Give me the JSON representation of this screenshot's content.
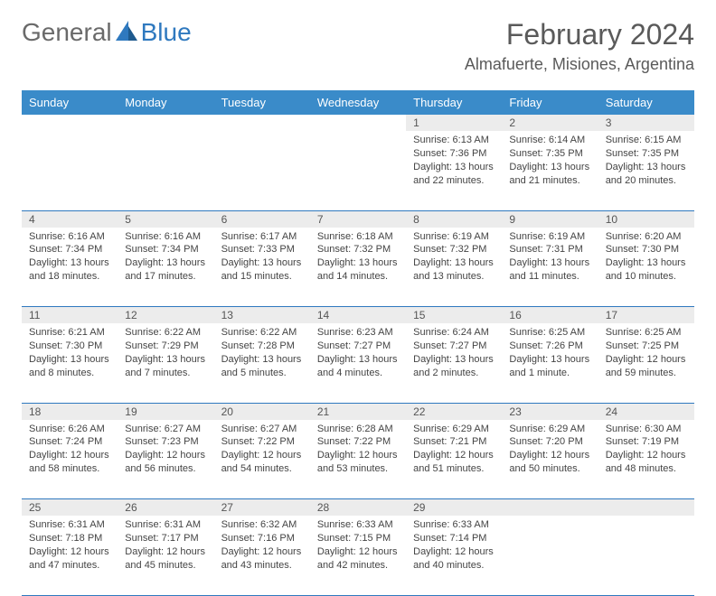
{
  "logo": {
    "general": "General",
    "blue": "Blue"
  },
  "title": "February 2024",
  "location": "Almafuerte, Misiones, Argentina",
  "colors": {
    "header_bg": "#3a8bc9",
    "header_text": "#ffffff",
    "daynum_bg": "#ececec",
    "border": "#2f79bf",
    "logo_gray": "#6a6a6a",
    "logo_blue": "#2f79bf",
    "title_color": "#5a5a5a"
  },
  "weekdays": [
    "Sunday",
    "Monday",
    "Tuesday",
    "Wednesday",
    "Thursday",
    "Friday",
    "Saturday"
  ],
  "weeks": [
    [
      null,
      null,
      null,
      null,
      {
        "n": "1",
        "sr": "Sunrise: 6:13 AM",
        "ss": "Sunset: 7:36 PM",
        "dl": "Daylight: 13 hours and 22 minutes."
      },
      {
        "n": "2",
        "sr": "Sunrise: 6:14 AM",
        "ss": "Sunset: 7:35 PM",
        "dl": "Daylight: 13 hours and 21 minutes."
      },
      {
        "n": "3",
        "sr": "Sunrise: 6:15 AM",
        "ss": "Sunset: 7:35 PM",
        "dl": "Daylight: 13 hours and 20 minutes."
      }
    ],
    [
      {
        "n": "4",
        "sr": "Sunrise: 6:16 AM",
        "ss": "Sunset: 7:34 PM",
        "dl": "Daylight: 13 hours and 18 minutes."
      },
      {
        "n": "5",
        "sr": "Sunrise: 6:16 AM",
        "ss": "Sunset: 7:34 PM",
        "dl": "Daylight: 13 hours and 17 minutes."
      },
      {
        "n": "6",
        "sr": "Sunrise: 6:17 AM",
        "ss": "Sunset: 7:33 PM",
        "dl": "Daylight: 13 hours and 15 minutes."
      },
      {
        "n": "7",
        "sr": "Sunrise: 6:18 AM",
        "ss": "Sunset: 7:32 PM",
        "dl": "Daylight: 13 hours and 14 minutes."
      },
      {
        "n": "8",
        "sr": "Sunrise: 6:19 AM",
        "ss": "Sunset: 7:32 PM",
        "dl": "Daylight: 13 hours and 13 minutes."
      },
      {
        "n": "9",
        "sr": "Sunrise: 6:19 AM",
        "ss": "Sunset: 7:31 PM",
        "dl": "Daylight: 13 hours and 11 minutes."
      },
      {
        "n": "10",
        "sr": "Sunrise: 6:20 AM",
        "ss": "Sunset: 7:30 PM",
        "dl": "Daylight: 13 hours and 10 minutes."
      }
    ],
    [
      {
        "n": "11",
        "sr": "Sunrise: 6:21 AM",
        "ss": "Sunset: 7:30 PM",
        "dl": "Daylight: 13 hours and 8 minutes."
      },
      {
        "n": "12",
        "sr": "Sunrise: 6:22 AM",
        "ss": "Sunset: 7:29 PM",
        "dl": "Daylight: 13 hours and 7 minutes."
      },
      {
        "n": "13",
        "sr": "Sunrise: 6:22 AM",
        "ss": "Sunset: 7:28 PM",
        "dl": "Daylight: 13 hours and 5 minutes."
      },
      {
        "n": "14",
        "sr": "Sunrise: 6:23 AM",
        "ss": "Sunset: 7:27 PM",
        "dl": "Daylight: 13 hours and 4 minutes."
      },
      {
        "n": "15",
        "sr": "Sunrise: 6:24 AM",
        "ss": "Sunset: 7:27 PM",
        "dl": "Daylight: 13 hours and 2 minutes."
      },
      {
        "n": "16",
        "sr": "Sunrise: 6:25 AM",
        "ss": "Sunset: 7:26 PM",
        "dl": "Daylight: 13 hours and 1 minute."
      },
      {
        "n": "17",
        "sr": "Sunrise: 6:25 AM",
        "ss": "Sunset: 7:25 PM",
        "dl": "Daylight: 12 hours and 59 minutes."
      }
    ],
    [
      {
        "n": "18",
        "sr": "Sunrise: 6:26 AM",
        "ss": "Sunset: 7:24 PM",
        "dl": "Daylight: 12 hours and 58 minutes."
      },
      {
        "n": "19",
        "sr": "Sunrise: 6:27 AM",
        "ss": "Sunset: 7:23 PM",
        "dl": "Daylight: 12 hours and 56 minutes."
      },
      {
        "n": "20",
        "sr": "Sunrise: 6:27 AM",
        "ss": "Sunset: 7:22 PM",
        "dl": "Daylight: 12 hours and 54 minutes."
      },
      {
        "n": "21",
        "sr": "Sunrise: 6:28 AM",
        "ss": "Sunset: 7:22 PM",
        "dl": "Daylight: 12 hours and 53 minutes."
      },
      {
        "n": "22",
        "sr": "Sunrise: 6:29 AM",
        "ss": "Sunset: 7:21 PM",
        "dl": "Daylight: 12 hours and 51 minutes."
      },
      {
        "n": "23",
        "sr": "Sunrise: 6:29 AM",
        "ss": "Sunset: 7:20 PM",
        "dl": "Daylight: 12 hours and 50 minutes."
      },
      {
        "n": "24",
        "sr": "Sunrise: 6:30 AM",
        "ss": "Sunset: 7:19 PM",
        "dl": "Daylight: 12 hours and 48 minutes."
      }
    ],
    [
      {
        "n": "25",
        "sr": "Sunrise: 6:31 AM",
        "ss": "Sunset: 7:18 PM",
        "dl": "Daylight: 12 hours and 47 minutes."
      },
      {
        "n": "26",
        "sr": "Sunrise: 6:31 AM",
        "ss": "Sunset: 7:17 PM",
        "dl": "Daylight: 12 hours and 45 minutes."
      },
      {
        "n": "27",
        "sr": "Sunrise: 6:32 AM",
        "ss": "Sunset: 7:16 PM",
        "dl": "Daylight: 12 hours and 43 minutes."
      },
      {
        "n": "28",
        "sr": "Sunrise: 6:33 AM",
        "ss": "Sunset: 7:15 PM",
        "dl": "Daylight: 12 hours and 42 minutes."
      },
      {
        "n": "29",
        "sr": "Sunrise: 6:33 AM",
        "ss": "Sunset: 7:14 PM",
        "dl": "Daylight: 12 hours and 40 minutes."
      },
      null,
      null
    ]
  ]
}
